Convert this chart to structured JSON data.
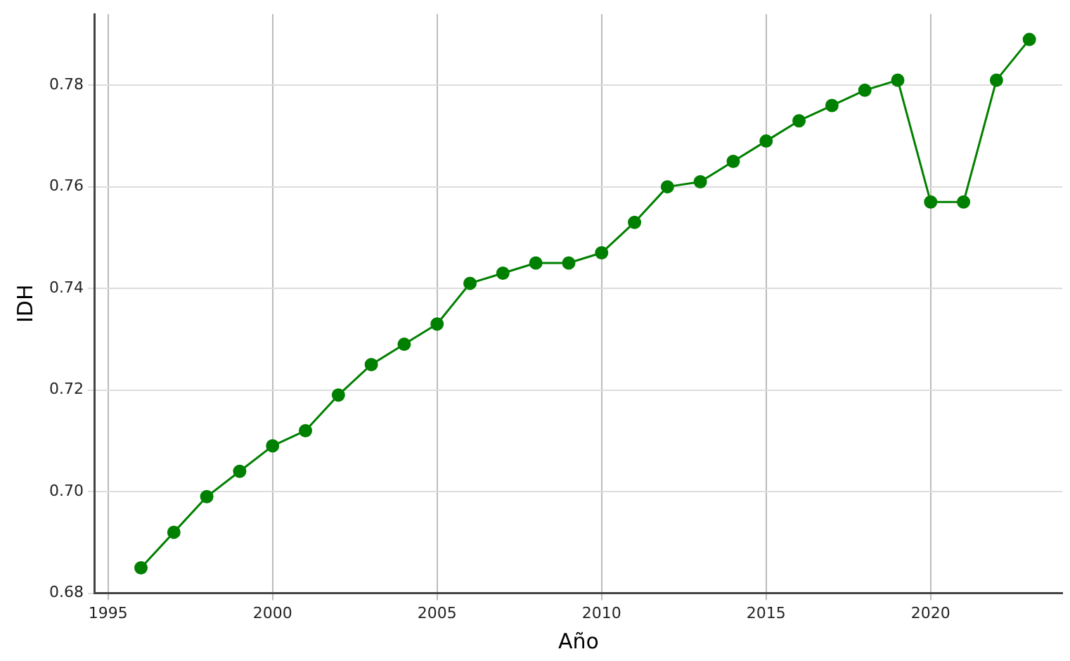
{
  "chart_data": {
    "type": "line",
    "xlabel": "Año",
    "ylabel": "IDH",
    "x": [
      1996,
      1997,
      1998,
      1999,
      2000,
      2001,
      2002,
      2003,
      2004,
      2005,
      2006,
      2007,
      2008,
      2009,
      2010,
      2011,
      2012,
      2013,
      2014,
      2015,
      2016,
      2017,
      2018,
      2019,
      2020,
      2021,
      2022,
      2023
    ],
    "series": [
      {
        "color": "#008000",
        "values": [
          0.685,
          0.692,
          0.699,
          0.704,
          0.709,
          0.712,
          0.719,
          0.725,
          0.729,
          0.733,
          0.741,
          0.743,
          0.745,
          0.745,
          0.747,
          0.753,
          0.76,
          0.761,
          0.765,
          0.769,
          0.773,
          0.776,
          0.779,
          0.781,
          0.757,
          0.757,
          0.781,
          0.789
        ]
      }
    ],
    "xlim": [
      1994.6,
      2024.0
    ],
    "xticks": [
      1995,
      2000,
      2005,
      2010,
      2015,
      2020
    ],
    "ylim": [
      0.68,
      0.794
    ],
    "yticks": [
      {
        "value": 0.68,
        "label": "0.68"
      },
      {
        "value": 0.7,
        "label": "0.70"
      },
      {
        "value": 0.72,
        "label": "0.72"
      },
      {
        "value": 0.74,
        "label": "0.74"
      },
      {
        "value": 0.76,
        "label": "0.76"
      },
      {
        "value": 0.78,
        "label": "0.78"
      }
    ],
    "grid": true,
    "marker": "circle",
    "line_style": "solid"
  }
}
